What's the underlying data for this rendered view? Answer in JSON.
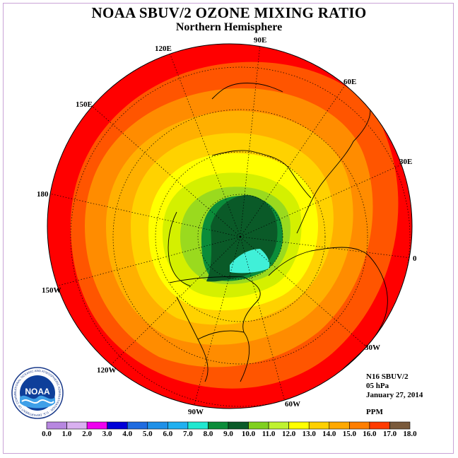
{
  "title": "NOAA SBUV/2 OZONE MIXING RATIO",
  "subtitle": "Northern Hemisphere",
  "longitude_labels": [
    "90E",
    "60E",
    "30E",
    "0",
    "30W",
    "60W",
    "90W",
    "120W",
    "150W",
    "180",
    "150E",
    "120E"
  ],
  "info": {
    "instrument": "N16 SBUV/2",
    "level": "05 hPa",
    "date": "January 27, 2014",
    "units": "PPM"
  },
  "logo": {
    "text": "NOAA",
    "ring_text": "NATIONAL OCEANIC AND ATMOSPHERIC ADMINISTRATION · U.S. DEPARTMENT OF COMMERCE"
  },
  "colorbar": {
    "ticks": [
      "0.0",
      "1.0",
      "2.0",
      "3.0",
      "4.0",
      "5.0",
      "6.0",
      "7.0",
      "8.0",
      "9.0",
      "10.0",
      "11.0",
      "12.0",
      "13.0",
      "14.0",
      "15.0",
      "16.0",
      "17.0",
      "18.0"
    ],
    "colors": [
      "#b787e0",
      "#d9b0f0",
      "#ef00ef",
      "#0000d8",
      "#1e6be0",
      "#1e90e8",
      "#20b0f0",
      "#20e8d0",
      "#0b8c3a",
      "#0a5a28",
      "#7fd01e",
      "#bff230",
      "#ffff00",
      "#ffd000",
      "#ffa800",
      "#ff7e00",
      "#ff3a00",
      "#7a5a3c"
    ]
  },
  "map_colors": {
    "ocean_edge": "#ff0000",
    "outer": "#ff5500",
    "band_orange": "#ff8c00",
    "band_amber": "#ffb000",
    "band_gold": "#ffd200",
    "band_yellow": "#ffff00",
    "band_ygreen": "#d4f000",
    "band_lgreen": "#9ada1e",
    "band_green": "#0b8c3a",
    "core_dkgreen": "#0a5a28",
    "core_cyan": "#40f0d8"
  }
}
